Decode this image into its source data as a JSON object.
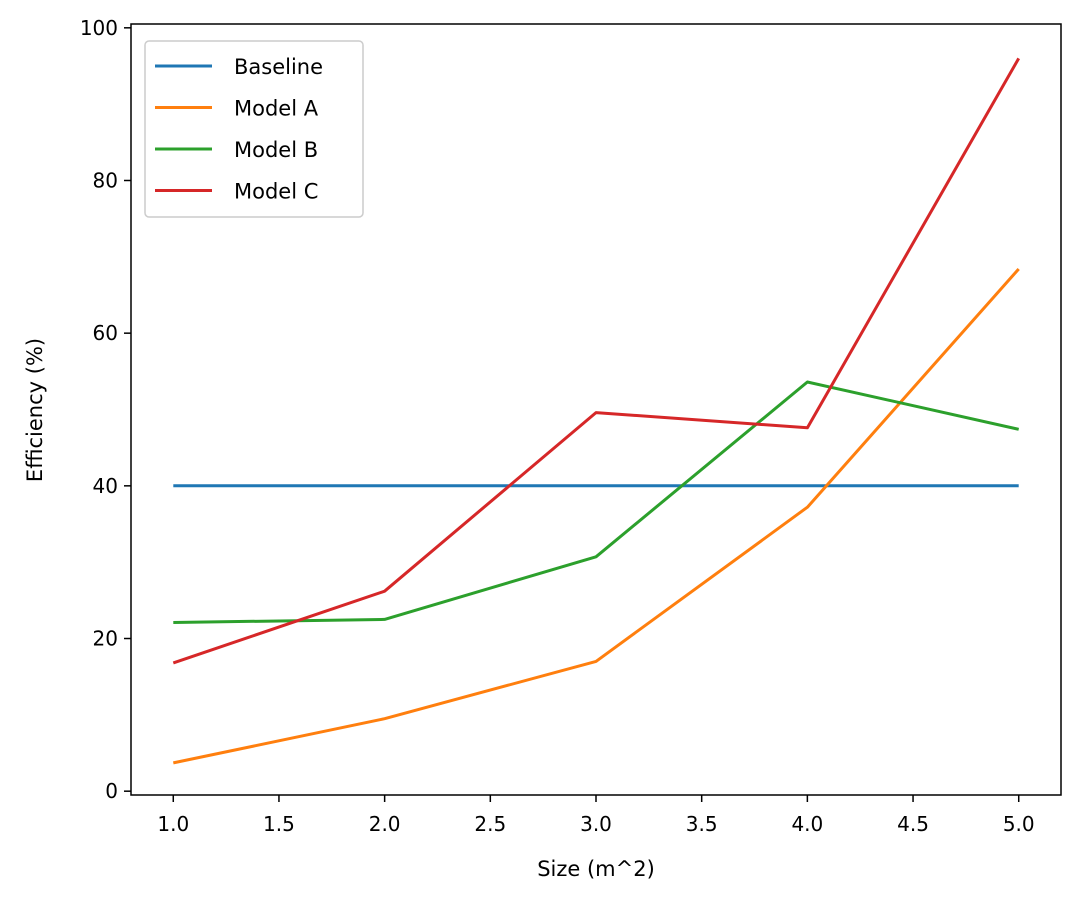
{
  "chart_data": {
    "type": "line",
    "x": [
      1.0,
      2.0,
      3.0,
      4.0,
      5.0
    ],
    "xlabel": "Size (m^2)",
    "ylabel": "Efficiency (%)",
    "xlim": [
      0.8,
      5.2
    ],
    "ylim": [
      -0.5,
      100.5
    ],
    "xticks": [
      "1.0",
      "1.5",
      "2.0",
      "2.5",
      "3.0",
      "3.5",
      "4.0",
      "4.5",
      "5.0"
    ],
    "yticks": [
      "0",
      "20",
      "40",
      "60",
      "80",
      "100"
    ],
    "grid": false,
    "legend_position": "top-left",
    "series": [
      {
        "name": "Baseline",
        "color": "#1f77b4",
        "values": [
          40,
          40,
          40,
          40,
          40
        ]
      },
      {
        "name": "Model A",
        "color": "#ff7f0e",
        "values": [
          3.7,
          9.5,
          17.0,
          37.2,
          68.4
        ]
      },
      {
        "name": "Model B",
        "color": "#2ca02c",
        "values": [
          22.1,
          22.5,
          30.7,
          53.6,
          47.4
        ]
      },
      {
        "name": "Model C",
        "color": "#d62728",
        "values": [
          16.8,
          26.2,
          49.6,
          47.6,
          96.0
        ]
      }
    ]
  }
}
